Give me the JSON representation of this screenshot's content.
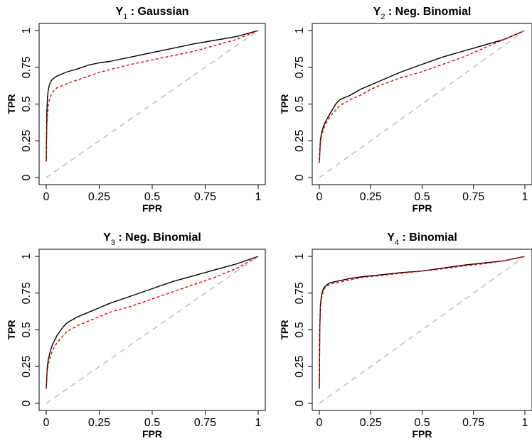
{
  "chart_data": [
    {
      "type": "line",
      "title_var": "Y",
      "title_sub": "1",
      "title_rest": " : Gaussian",
      "xlabel": "FPR",
      "ylabel": "TPR",
      "xlim": [
        0,
        1
      ],
      "ylim": [
        0,
        1
      ],
      "xticks": [
        "0",
        "0.25",
        "0.5",
        "0.75",
        "1"
      ],
      "yticks": [
        "0",
        "0.25",
        "0.5",
        "0.75",
        "1"
      ],
      "grid": false,
      "series": [
        {
          "style": "solid",
          "color": "#000000",
          "x": [
            0,
            0.003,
            0.006,
            0.01,
            0.015,
            0.02,
            0.03,
            0.05,
            0.075,
            0.1,
            0.15,
            0.2,
            0.25,
            0.3,
            0.4,
            0.5,
            0.6,
            0.7,
            0.8,
            0.9,
            1.0
          ],
          "y": [
            0.11,
            0.45,
            0.55,
            0.6,
            0.63,
            0.65,
            0.67,
            0.69,
            0.705,
            0.72,
            0.74,
            0.765,
            0.78,
            0.79,
            0.82,
            0.85,
            0.88,
            0.91,
            0.935,
            0.96,
            1.0
          ]
        },
        {
          "style": "dashed",
          "color": "#e8000b",
          "x": [
            0,
            0.003,
            0.006,
            0.01,
            0.015,
            0.02,
            0.03,
            0.05,
            0.1,
            0.15,
            0.2,
            0.25,
            0.3,
            0.4,
            0.5,
            0.6,
            0.7,
            0.8,
            0.9,
            1.0
          ],
          "y": [
            0.11,
            0.35,
            0.43,
            0.49,
            0.53,
            0.55,
            0.58,
            0.61,
            0.64,
            0.665,
            0.69,
            0.715,
            0.735,
            0.77,
            0.8,
            0.83,
            0.86,
            0.9,
            0.94,
            1.0
          ]
        },
        {
          "style": "dashed",
          "color": "#bebebe",
          "x": [
            0,
            1
          ],
          "y": [
            0,
            1
          ]
        }
      ]
    },
    {
      "type": "line",
      "title_var": "Y",
      "title_sub": "2",
      "title_rest": " : Neg. Binomial",
      "xlabel": "FPR",
      "ylabel": "TPR",
      "xlim": [
        0,
        1
      ],
      "ylim": [
        0,
        1
      ],
      "xticks": [
        "0",
        "0.25",
        "0.5",
        "0.75",
        "1"
      ],
      "yticks": [
        "0",
        "0.25",
        "0.5",
        "0.75",
        "1"
      ],
      "grid": false,
      "series": [
        {
          "style": "solid",
          "color": "#000000",
          "x": [
            0,
            0.005,
            0.01,
            0.02,
            0.03,
            0.05,
            0.08,
            0.1,
            0.15,
            0.2,
            0.25,
            0.3,
            0.4,
            0.5,
            0.6,
            0.7,
            0.8,
            0.9,
            1.0
          ],
          "y": [
            0.1,
            0.25,
            0.3,
            0.35,
            0.38,
            0.43,
            0.5,
            0.53,
            0.56,
            0.6,
            0.63,
            0.66,
            0.72,
            0.77,
            0.82,
            0.86,
            0.9,
            0.94,
            1.0
          ]
        },
        {
          "style": "dashed",
          "color": "#e8000b",
          "x": [
            0,
            0.005,
            0.01,
            0.02,
            0.03,
            0.05,
            0.08,
            0.1,
            0.15,
            0.2,
            0.25,
            0.3,
            0.4,
            0.5,
            0.6,
            0.7,
            0.8,
            0.9,
            1.0
          ],
          "y": [
            0.1,
            0.23,
            0.28,
            0.33,
            0.36,
            0.41,
            0.46,
            0.49,
            0.53,
            0.56,
            0.6,
            0.63,
            0.68,
            0.72,
            0.77,
            0.82,
            0.88,
            0.94,
            1.0
          ]
        },
        {
          "style": "dashed",
          "color": "#bebebe",
          "x": [
            0,
            1
          ],
          "y": [
            0,
            1
          ]
        }
      ]
    },
    {
      "type": "line",
      "title_var": "Y",
      "title_sub": "3",
      "title_rest": " : Neg. Binomial",
      "xlabel": "FPR",
      "ylabel": "TPR",
      "xlim": [
        0,
        1
      ],
      "ylim": [
        0,
        1
      ],
      "xticks": [
        "0",
        "0.25",
        "0.5",
        "0.75",
        "1"
      ],
      "yticks": [
        "0",
        "0.25",
        "0.5",
        "0.75",
        "1"
      ],
      "grid": false,
      "series": [
        {
          "style": "solid",
          "color": "#000000",
          "x": [
            0,
            0.005,
            0.01,
            0.02,
            0.03,
            0.05,
            0.08,
            0.1,
            0.15,
            0.2,
            0.25,
            0.3,
            0.4,
            0.5,
            0.6,
            0.7,
            0.8,
            0.9,
            1.0
          ],
          "y": [
            0.1,
            0.25,
            0.3,
            0.36,
            0.4,
            0.46,
            0.52,
            0.55,
            0.59,
            0.62,
            0.65,
            0.68,
            0.73,
            0.78,
            0.83,
            0.87,
            0.91,
            0.95,
            1.0
          ]
        },
        {
          "style": "dashed",
          "color": "#e8000b",
          "x": [
            0,
            0.005,
            0.01,
            0.02,
            0.03,
            0.05,
            0.08,
            0.1,
            0.15,
            0.2,
            0.25,
            0.3,
            0.4,
            0.5,
            0.6,
            0.7,
            0.8,
            0.9,
            1.0
          ],
          "y": [
            0.1,
            0.22,
            0.27,
            0.32,
            0.36,
            0.41,
            0.46,
            0.49,
            0.53,
            0.56,
            0.59,
            0.62,
            0.66,
            0.71,
            0.76,
            0.81,
            0.86,
            0.92,
            1.0
          ]
        },
        {
          "style": "dashed",
          "color": "#bebebe",
          "x": [
            0,
            1
          ],
          "y": [
            0,
            1
          ]
        }
      ]
    },
    {
      "type": "line",
      "title_var": "Y",
      "title_sub": "4",
      "title_rest": " : Binomial",
      "xlabel": "FPR",
      "ylabel": "TPR",
      "xlim": [
        0,
        1
      ],
      "ylim": [
        0,
        1
      ],
      "xticks": [
        "0",
        "0.25",
        "0.5",
        "0.75",
        "1"
      ],
      "yticks": [
        "0",
        "0.25",
        "0.5",
        "0.75",
        "1"
      ],
      "grid": false,
      "series": [
        {
          "style": "solid",
          "color": "#000000",
          "x": [
            0,
            0.002,
            0.004,
            0.006,
            0.01,
            0.015,
            0.02,
            0.03,
            0.05,
            0.1,
            0.15,
            0.2,
            0.3,
            0.4,
            0.5,
            0.6,
            0.7,
            0.8,
            0.9,
            1.0
          ],
          "y": [
            0.1,
            0.5,
            0.62,
            0.68,
            0.73,
            0.76,
            0.78,
            0.8,
            0.82,
            0.835,
            0.85,
            0.86,
            0.875,
            0.89,
            0.9,
            0.92,
            0.94,
            0.955,
            0.97,
            1.0
          ]
        },
        {
          "style": "dashed",
          "color": "#e8000b",
          "x": [
            0,
            0.002,
            0.004,
            0.006,
            0.01,
            0.015,
            0.02,
            0.03,
            0.05,
            0.1,
            0.15,
            0.2,
            0.3,
            0.4,
            0.5,
            0.6,
            0.7,
            0.8,
            0.9,
            1.0
          ],
          "y": [
            0.1,
            0.48,
            0.6,
            0.66,
            0.71,
            0.74,
            0.77,
            0.79,
            0.81,
            0.825,
            0.84,
            0.855,
            0.87,
            0.885,
            0.9,
            0.915,
            0.935,
            0.95,
            0.97,
            1.0
          ]
        },
        {
          "style": "dashed",
          "color": "#bebebe",
          "x": [
            0,
            1
          ],
          "y": [
            0,
            1
          ]
        }
      ]
    }
  ]
}
